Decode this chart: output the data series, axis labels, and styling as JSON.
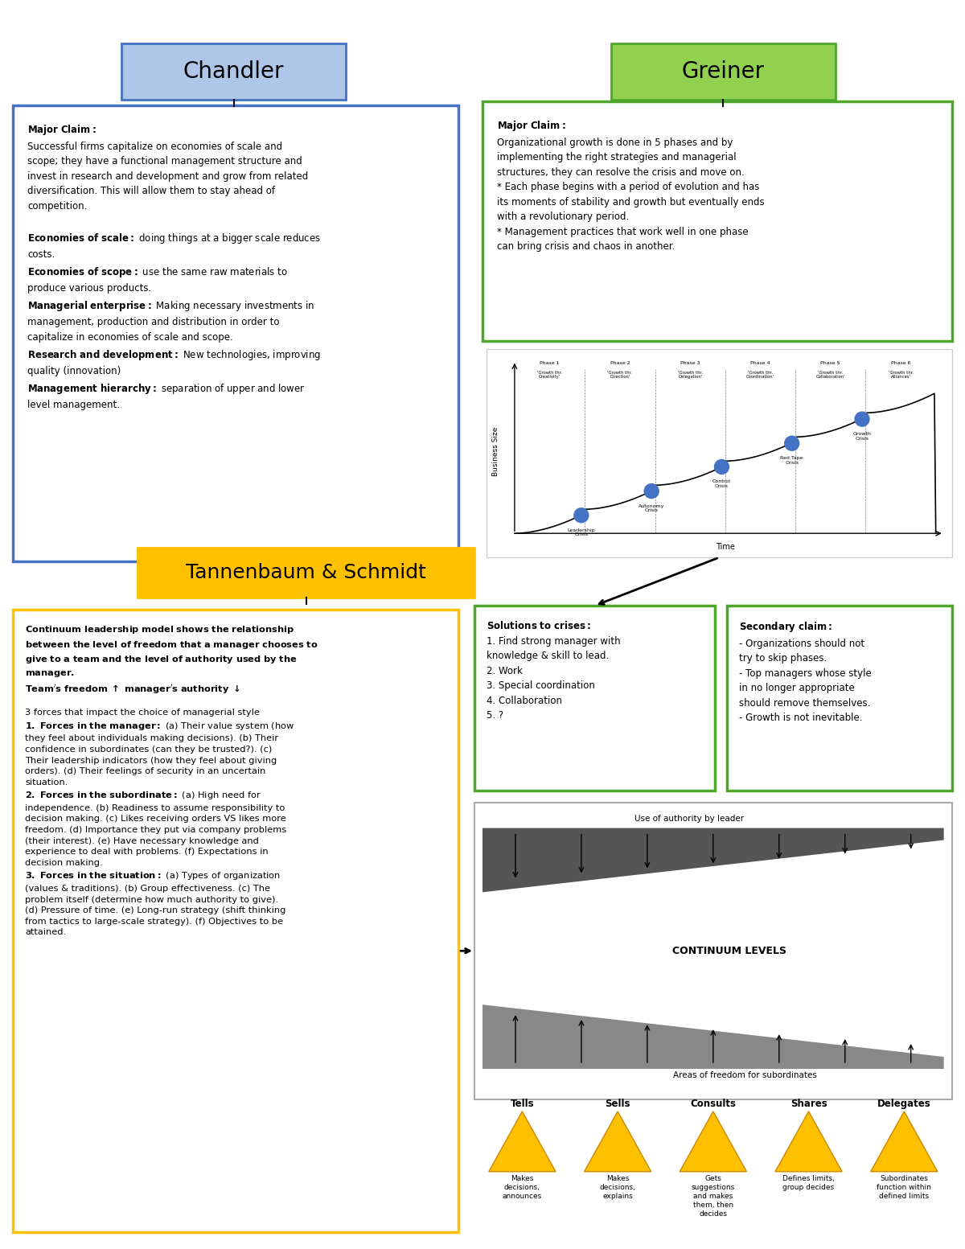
{
  "bg_color": "#ffffff",
  "chandler_title": "Chandler",
  "chandler_title_bg": "#aec6e8",
  "chandler_title_border": "#4472c4",
  "chandler_box_border": "#4472c4",
  "chandler_text": "Major Claim:\nSuccessful firms capitalize on economies of scale and\nscope; they have a functional management structure and\ninvest in research and development and grow from related\ndiversification. This will allow them to stay ahead of\ncompetition.\n\nEconomies of scale: doing things at a bigger scale reduces\ncosts.\nEconomies of scope: use the same raw materials to\nproduce various products.\nManagerial enterprise: Making necessary investments in\nmanagement, production and distribution in order to\ncapitalize in economies of scale and scope.\nResearch and development: New technologies, improving\nquality (innovation)\nManagement hierarchy: separation of upper and lower\nlevel management.",
  "greiner_title": "Greiner",
  "greiner_title_bg": "#92d050",
  "greiner_title_border": "#4ea72c",
  "greiner_box_border": "#4ea72c",
  "greiner_text": "Major Claim:\nOrganizational growth is done in 5 phases and by\nimplementing the right strategies and managerial\nstructures, they can resolve the crisis and move on.\n* Each phase begins with a period of evolution and has\nits moments of stability and growth but eventually ends\nwith a revolutionary period.\n* Management practices that work well in one phase\ncan bring crisis and chaos in another.",
  "tannenbaum_title": "Tannenbaum & Schmidt",
  "tannenbaum_title_bg": "#ffc000",
  "tannenbaum_title_border": "#ffc000",
  "tannenbaum_box_border": "#ffc000",
  "tannenbaum_left_text": "Continuum leadership model shows the relationship\nbetween the level of freedom that a manager chooses to\ngive to a team and the level of authority used by the\nmanager.\nTeam's freedom ↑ manager's authority ↓\n\n3 forces that impact the choice of managerial style\n1. Forces in the manager: (a) Their value system (how\nthey feel about individuals making decisions). (b) Their\nconfidence in subordinates (can they be trusted?). (c)\nTheir leadership indicators (how they feel about giving\norders). (d) Their feelings of security in an uncertain\nsituation.\n2. Forces in the subordinate: (a) High need for\nindependence. (b) Readiness to assume responsibility to\ndecision making. (c) Likes receiving orders VS likes more\nfreedom. (d) Importance they put via company problems\n(their interest). (e) Have necessary knowledge and\nexperience to deal with problems. (f) Expectations in\ndecision making.\n3. Forces in the situation: (a) Types of organization\n(values & traditions). (b) Group effectiveness. (c) The\nproblem itself (determine how much authority to give).\n(d) Pressure of time. (e) Long-run strategy (shift thinking\nfrom tactics to large-scale strategy). (f) Objectives to be\nattained.",
  "solutions_text": "Solutions to crises:\n1. Find strong manager with\nknowledge & skill to lead.\n2. Work\n3. Special coordination\n4. Collaboration\n5. ?",
  "solutions_box_border": "#4ea72c",
  "secondary_claim_text": "Secondary claim:\n- Organizations should not\ntry to skip phases.\n- Top managers whose style\nin no longer appropriate\nshould remove themselves.\n- Growth is not inevitable.",
  "secondary_box_border": "#4ea72c"
}
